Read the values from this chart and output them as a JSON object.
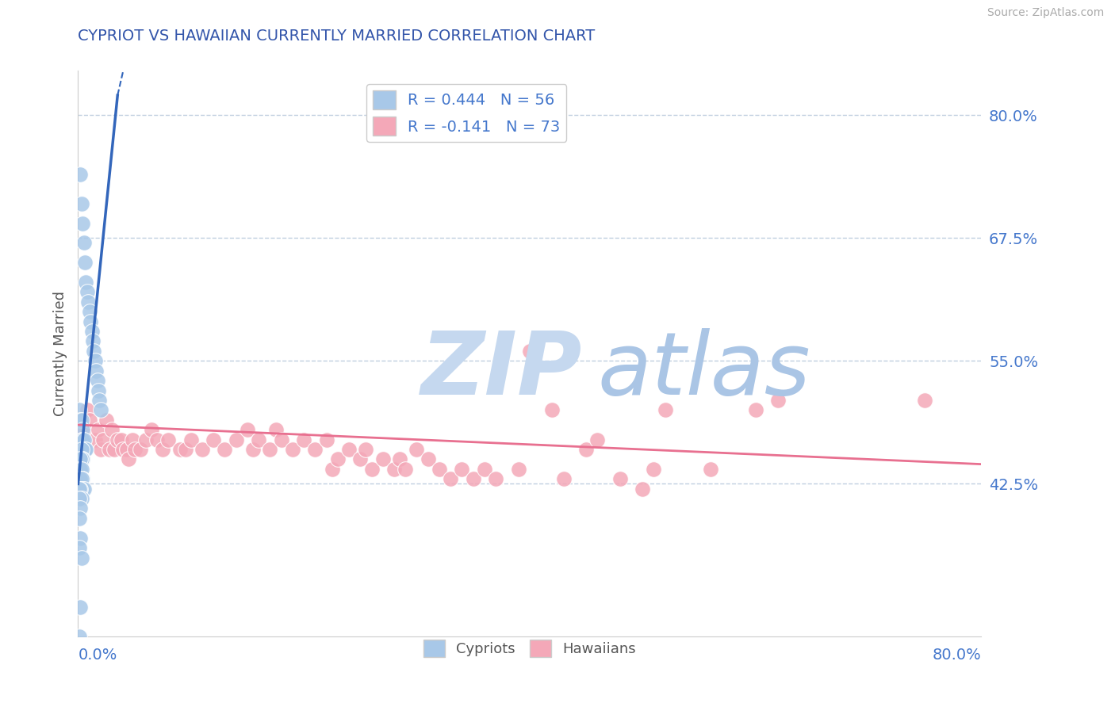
{
  "title": "CYPRIOT VS HAWAIIAN CURRENTLY MARRIED CORRELATION CHART",
  "source_text": "Source: ZipAtlas.com",
  "ylabel": "Currently Married",
  "legend_cypriot": "R = 0.444   N = 56",
  "legend_hawaiian": "R = -0.141   N = 73",
  "xmin": 0.0,
  "xmax": 0.8,
  "ymin": 0.27,
  "ymax": 0.845,
  "yticks": [
    0.425,
    0.55,
    0.675,
    0.8
  ],
  "ytick_labels": [
    "42.5%",
    "55.0%",
    "67.5%",
    "80.0%"
  ],
  "color_cypriot": "#a8c8e8",
  "color_hawaiian": "#f4a8b8",
  "line_color_cypriot": "#3366bb",
  "line_color_hawaiian": "#e87090",
  "background_color": "#ffffff",
  "grid_color": "#c0cfe0",
  "title_color": "#3355aa",
  "tick_color": "#4477cc",
  "watermark_zip_color": "#c5d8ef",
  "watermark_atlas_color": "#aac5e5",
  "cypriot_x": [
    0.002,
    0.003,
    0.004,
    0.005,
    0.006,
    0.007,
    0.008,
    0.009,
    0.01,
    0.011,
    0.012,
    0.013,
    0.014,
    0.015,
    0.016,
    0.017,
    0.018,
    0.019,
    0.02,
    0.001,
    0.002,
    0.003,
    0.004,
    0.003,
    0.004,
    0.005,
    0.006,
    0.007,
    0.003,
    0.004,
    0.003,
    0.002,
    0.001,
    0.002,
    0.003,
    0.004,
    0.002,
    0.003,
    0.002,
    0.001,
    0.002,
    0.003,
    0.004,
    0.005,
    0.002,
    0.001,
    0.002,
    0.003,
    0.001,
    0.002,
    0.001,
    0.002,
    0.001,
    0.003,
    0.002,
    0.001
  ],
  "cypriot_y": [
    0.74,
    0.71,
    0.69,
    0.67,
    0.65,
    0.63,
    0.62,
    0.61,
    0.6,
    0.59,
    0.58,
    0.57,
    0.56,
    0.55,
    0.54,
    0.53,
    0.52,
    0.51,
    0.5,
    0.5,
    0.49,
    0.49,
    0.48,
    0.47,
    0.47,
    0.47,
    0.46,
    0.46,
    0.46,
    0.45,
    0.45,
    0.45,
    0.44,
    0.44,
    0.44,
    0.43,
    0.43,
    0.43,
    0.43,
    0.43,
    0.43,
    0.43,
    0.42,
    0.42,
    0.42,
    0.42,
    0.41,
    0.41,
    0.41,
    0.4,
    0.39,
    0.37,
    0.36,
    0.35,
    0.3,
    0.27
  ],
  "hawaiian_x": [
    0.005,
    0.008,
    0.01,
    0.015,
    0.018,
    0.02,
    0.022,
    0.025,
    0.028,
    0.03,
    0.032,
    0.035,
    0.038,
    0.04,
    0.043,
    0.045,
    0.048,
    0.05,
    0.055,
    0.06,
    0.065,
    0.07,
    0.075,
    0.08,
    0.09,
    0.095,
    0.1,
    0.11,
    0.12,
    0.13,
    0.14,
    0.15,
    0.155,
    0.16,
    0.17,
    0.175,
    0.18,
    0.19,
    0.2,
    0.21,
    0.22,
    0.225,
    0.23,
    0.24,
    0.25,
    0.255,
    0.26,
    0.27,
    0.28,
    0.285,
    0.29,
    0.3,
    0.31,
    0.32,
    0.33,
    0.34,
    0.35,
    0.36,
    0.37,
    0.39,
    0.4,
    0.42,
    0.43,
    0.45,
    0.46,
    0.48,
    0.5,
    0.51,
    0.52,
    0.56,
    0.6,
    0.62,
    0.75
  ],
  "hawaiian_y": [
    0.48,
    0.5,
    0.49,
    0.47,
    0.48,
    0.46,
    0.47,
    0.49,
    0.46,
    0.48,
    0.46,
    0.47,
    0.47,
    0.46,
    0.46,
    0.45,
    0.47,
    0.46,
    0.46,
    0.47,
    0.48,
    0.47,
    0.46,
    0.47,
    0.46,
    0.46,
    0.47,
    0.46,
    0.47,
    0.46,
    0.47,
    0.48,
    0.46,
    0.47,
    0.46,
    0.48,
    0.47,
    0.46,
    0.47,
    0.46,
    0.47,
    0.44,
    0.45,
    0.46,
    0.45,
    0.46,
    0.44,
    0.45,
    0.44,
    0.45,
    0.44,
    0.46,
    0.45,
    0.44,
    0.43,
    0.44,
    0.43,
    0.44,
    0.43,
    0.44,
    0.56,
    0.5,
    0.43,
    0.46,
    0.47,
    0.43,
    0.42,
    0.44,
    0.5,
    0.44,
    0.5,
    0.51,
    0.51
  ],
  "trend_cy_x0": 0.0,
  "trend_cy_x1": 0.035,
  "trend_cy_y0": 0.425,
  "trend_cy_y1": 0.82,
  "trend_hw_x0": 0.0,
  "trend_hw_x1": 0.8,
  "trend_hw_y0": 0.485,
  "trend_hw_y1": 0.445
}
